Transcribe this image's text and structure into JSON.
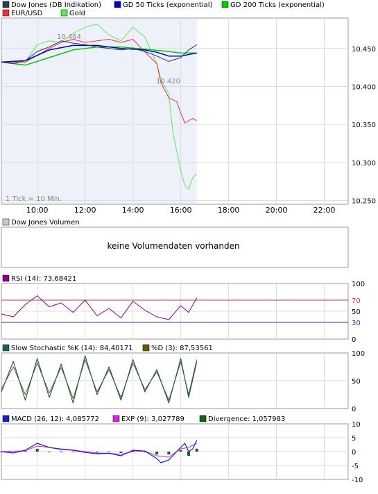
{
  "main_legend": [
    {
      "label": "Dow Jones (DB Indikation)",
      "color": "#2a3a5a"
    },
    {
      "label": "GD 50 Ticks (exponential)",
      "color": "#0000cc"
    },
    {
      "label": "GD 200 Ticks (exponential)",
      "color": "#00cc00"
    },
    {
      "label": "EUR/USD",
      "color": "#ee4444"
    },
    {
      "label": "Gold",
      "color": "#66ee66"
    }
  ],
  "volume_label": "Dow Jones Volumen",
  "volume_message": "keine Volumendaten vorhanden",
  "tick_note": "1 Tick = 10 Min.",
  "max_label": "10.464",
  "min_label": "10.420",
  "rsi_label": "RSI (14): 73,68421",
  "stoch_k_label": "Slow Stochastic %K (14): 84,40171",
  "stoch_d_label": "%D (3): 87,53561",
  "macd_label": "MACD (26, 12): 4,085772",
  "exp_label": "EXP (9): 3,027789",
  "div_label": "Divergence: 1,057983",
  "colors": {
    "dow": "#2a3a5a",
    "gd50": "#0000cc",
    "gd200": "#00cc00",
    "eurusd": "#ee3333",
    "gold": "#55ee55",
    "rsi": "#880088",
    "stoch_k": "#1f5f5f",
    "stoch_d": "#6b5b00",
    "macd": "#1a1acc",
    "exp": "#dd22dd",
    "divergence": "#116611"
  },
  "chart_data": [
    {
      "type": "line",
      "title": "Dow Jones (DB Indikation)",
      "x_ticks": [
        "10:00",
        "12:00",
        "14:00",
        "16:00",
        "18:00",
        "20:00",
        "22:00"
      ],
      "x_range_hours": [
        8.5,
        23.0
      ],
      "ylim": [
        10245,
        10490
      ],
      "y_ticks": [
        "10.250",
        "10.300",
        "10.350",
        "10.400",
        "10.450"
      ],
      "y_tick_values": [
        10250,
        10300,
        10350,
        10400,
        10450
      ],
      "annotations": {
        "max": 10464,
        "min": 10420
      },
      "series": [
        {
          "name": "Dow Jones (DB Indikation)",
          "x": [
            8.5,
            9.0,
            9.5,
            10.0,
            10.5,
            11.0,
            11.5,
            12.0,
            12.5,
            13.0,
            13.5,
            14.0,
            14.5,
            15.0,
            15.5,
            16.0,
            16.33,
            16.67
          ],
          "y": [
            10432,
            10430,
            10434,
            10446,
            10452,
            10460,
            10457,
            10455,
            10452,
            10450,
            10448,
            10450,
            10446,
            10440,
            10433,
            10438,
            10448,
            10455
          ]
        },
        {
          "name": "GD 50 Ticks (exponential)",
          "x": [
            8.5,
            9.5,
            10.5,
            11.5,
            12.5,
            13.5,
            14.5,
            15.0,
            15.5,
            16.0,
            16.67
          ],
          "y": [
            10432,
            10434,
            10448,
            10454,
            10454,
            10450,
            10448,
            10445,
            10440,
            10440,
            10444
          ]
        },
        {
          "name": "GD 200 Ticks (exponential)",
          "x": [
            8.5,
            9.5,
            10.5,
            11.5,
            12.5,
            13.5,
            14.5,
            15.5,
            16.0,
            16.67
          ],
          "y": [
            10432,
            10428,
            10438,
            10448,
            10452,
            10452,
            10449,
            10446,
            10444,
            10444
          ]
        }
      ],
      "overlays": [
        {
          "name": "EUR/USD",
          "x": [
            8.5,
            9.5,
            10.5,
            11.0,
            11.5,
            12.0,
            12.5,
            13.0,
            13.5,
            14.0,
            14.5,
            15.0,
            15.17,
            15.5,
            15.83,
            16.0,
            16.17,
            16.5,
            16.67
          ],
          "y": [
            10432,
            10432,
            10450,
            10458,
            10462,
            10458,
            10460,
            10462,
            10458,
            10462,
            10445,
            10430,
            10405,
            10385,
            10380,
            10365,
            10352,
            10358,
            10355
          ]
        },
        {
          "name": "Gold",
          "x": [
            8.5,
            9.5,
            10.0,
            10.5,
            11.0,
            11.5,
            12.0,
            12.5,
            13.0,
            13.5,
            14.0,
            14.5,
            15.0,
            15.17,
            15.5,
            15.67,
            15.83,
            16.0,
            16.17,
            16.33,
            16.5,
            16.67
          ],
          "y": [
            10432,
            10433,
            10455,
            10460,
            10458,
            10470,
            10478,
            10482,
            10468,
            10460,
            10478,
            10465,
            10430,
            10410,
            10390,
            10340,
            10315,
            10290,
            10270,
            10265,
            10280,
            10285
          ]
        }
      ]
    },
    {
      "type": "line",
      "title": "RSI (14): 73,68421",
      "ylim": [
        0,
        100
      ],
      "y_ticks": [
        0,
        30,
        50,
        70,
        100
      ],
      "reference_lines": [
        30,
        70
      ],
      "series": [
        {
          "name": "RSI (14)",
          "x": [
            8.5,
            9.0,
            9.5,
            10.0,
            10.5,
            11.0,
            11.5,
            12.0,
            12.5,
            13.0,
            13.5,
            14.0,
            14.5,
            15.0,
            15.5,
            16.0,
            16.33,
            16.67
          ],
          "y": [
            45,
            40,
            62,
            78,
            58,
            65,
            48,
            70,
            42,
            55,
            38,
            68,
            52,
            40,
            35,
            60,
            48,
            74
          ]
        }
      ]
    },
    {
      "type": "line",
      "title": "Slow Stochastic",
      "ylim": [
        0,
        100
      ],
      "y_ticks": [
        0,
        50,
        100
      ],
      "series": [
        {
          "name": "Slow Stochastic %K (14)",
          "x": [
            8.5,
            9.0,
            9.5,
            10.0,
            10.5,
            11.0,
            11.5,
            12.0,
            12.5,
            13.0,
            13.5,
            14.0,
            14.5,
            15.0,
            15.5,
            16.0,
            16.33,
            16.67
          ],
          "y": [
            30,
            85,
            15,
            90,
            20,
            80,
            10,
            95,
            25,
            75,
            15,
            88,
            30,
            70,
            10,
            90,
            20,
            84
          ]
        },
        {
          "name": "%D (3)",
          "x": [
            8.5,
            9.0,
            9.5,
            10.0,
            10.5,
            11.0,
            11.5,
            12.0,
            12.5,
            13.0,
            13.5,
            14.0,
            14.5,
            15.0,
            15.5,
            16.0,
            16.33,
            16.67
          ],
          "y": [
            35,
            75,
            25,
            82,
            28,
            74,
            18,
            88,
            30,
            70,
            20,
            82,
            34,
            66,
            15,
            84,
            25,
            88
          ]
        }
      ]
    },
    {
      "type": "line",
      "title": "MACD (26, 12)",
      "ylim": [
        -10,
        10
      ],
      "y_ticks": [
        -10,
        -5,
        0,
        5,
        10
      ],
      "series": [
        {
          "name": "MACD (26, 12)",
          "x": [
            8.5,
            9.0,
            9.5,
            10.0,
            10.5,
            11.0,
            11.5,
            12.0,
            12.5,
            13.0,
            13.5,
            14.0,
            14.5,
            15.0,
            15.17,
            15.5,
            15.83,
            16.0,
            16.17,
            16.33,
            16.5,
            16.67
          ],
          "y": [
            0,
            -0.5,
            0.5,
            3,
            1.5,
            0.8,
            0.5,
            -0.3,
            -0.8,
            -0.6,
            -1.5,
            0.5,
            0.2,
            -2.5,
            -4,
            -3,
            0,
            1.5,
            3,
            0,
            1,
            4.1
          ]
        },
        {
          "name": "EXP (9)",
          "x": [
            8.5,
            9.5,
            10.0,
            10.5,
            11.0,
            11.5,
            12.0,
            12.5,
            13.0,
            13.5,
            14.0,
            14.5,
            15.0,
            15.5,
            16.0,
            16.33,
            16.67
          ],
          "y": [
            0,
            0.3,
            2,
            1.5,
            1,
            0.6,
            0,
            -0.5,
            -0.6,
            -1,
            0,
            0.2,
            -1.5,
            -2,
            1,
            1.5,
            3
          ]
        },
        {
          "name": "Divergence",
          "x": [
            8.5,
            9.5,
            10.0,
            10.5,
            11.0,
            11.5,
            12.0,
            12.5,
            13.0,
            13.5,
            14.0,
            14.5,
            15.0,
            15.5,
            16.0,
            16.33,
            16.67
          ],
          "y": [
            0,
            0.2,
            1,
            0,
            -0.2,
            -0.1,
            -0.3,
            -0.3,
            0,
            -0.5,
            0.5,
            0,
            -1,
            -1,
            0.5,
            -1.5,
            1.06
          ]
        }
      ]
    }
  ]
}
